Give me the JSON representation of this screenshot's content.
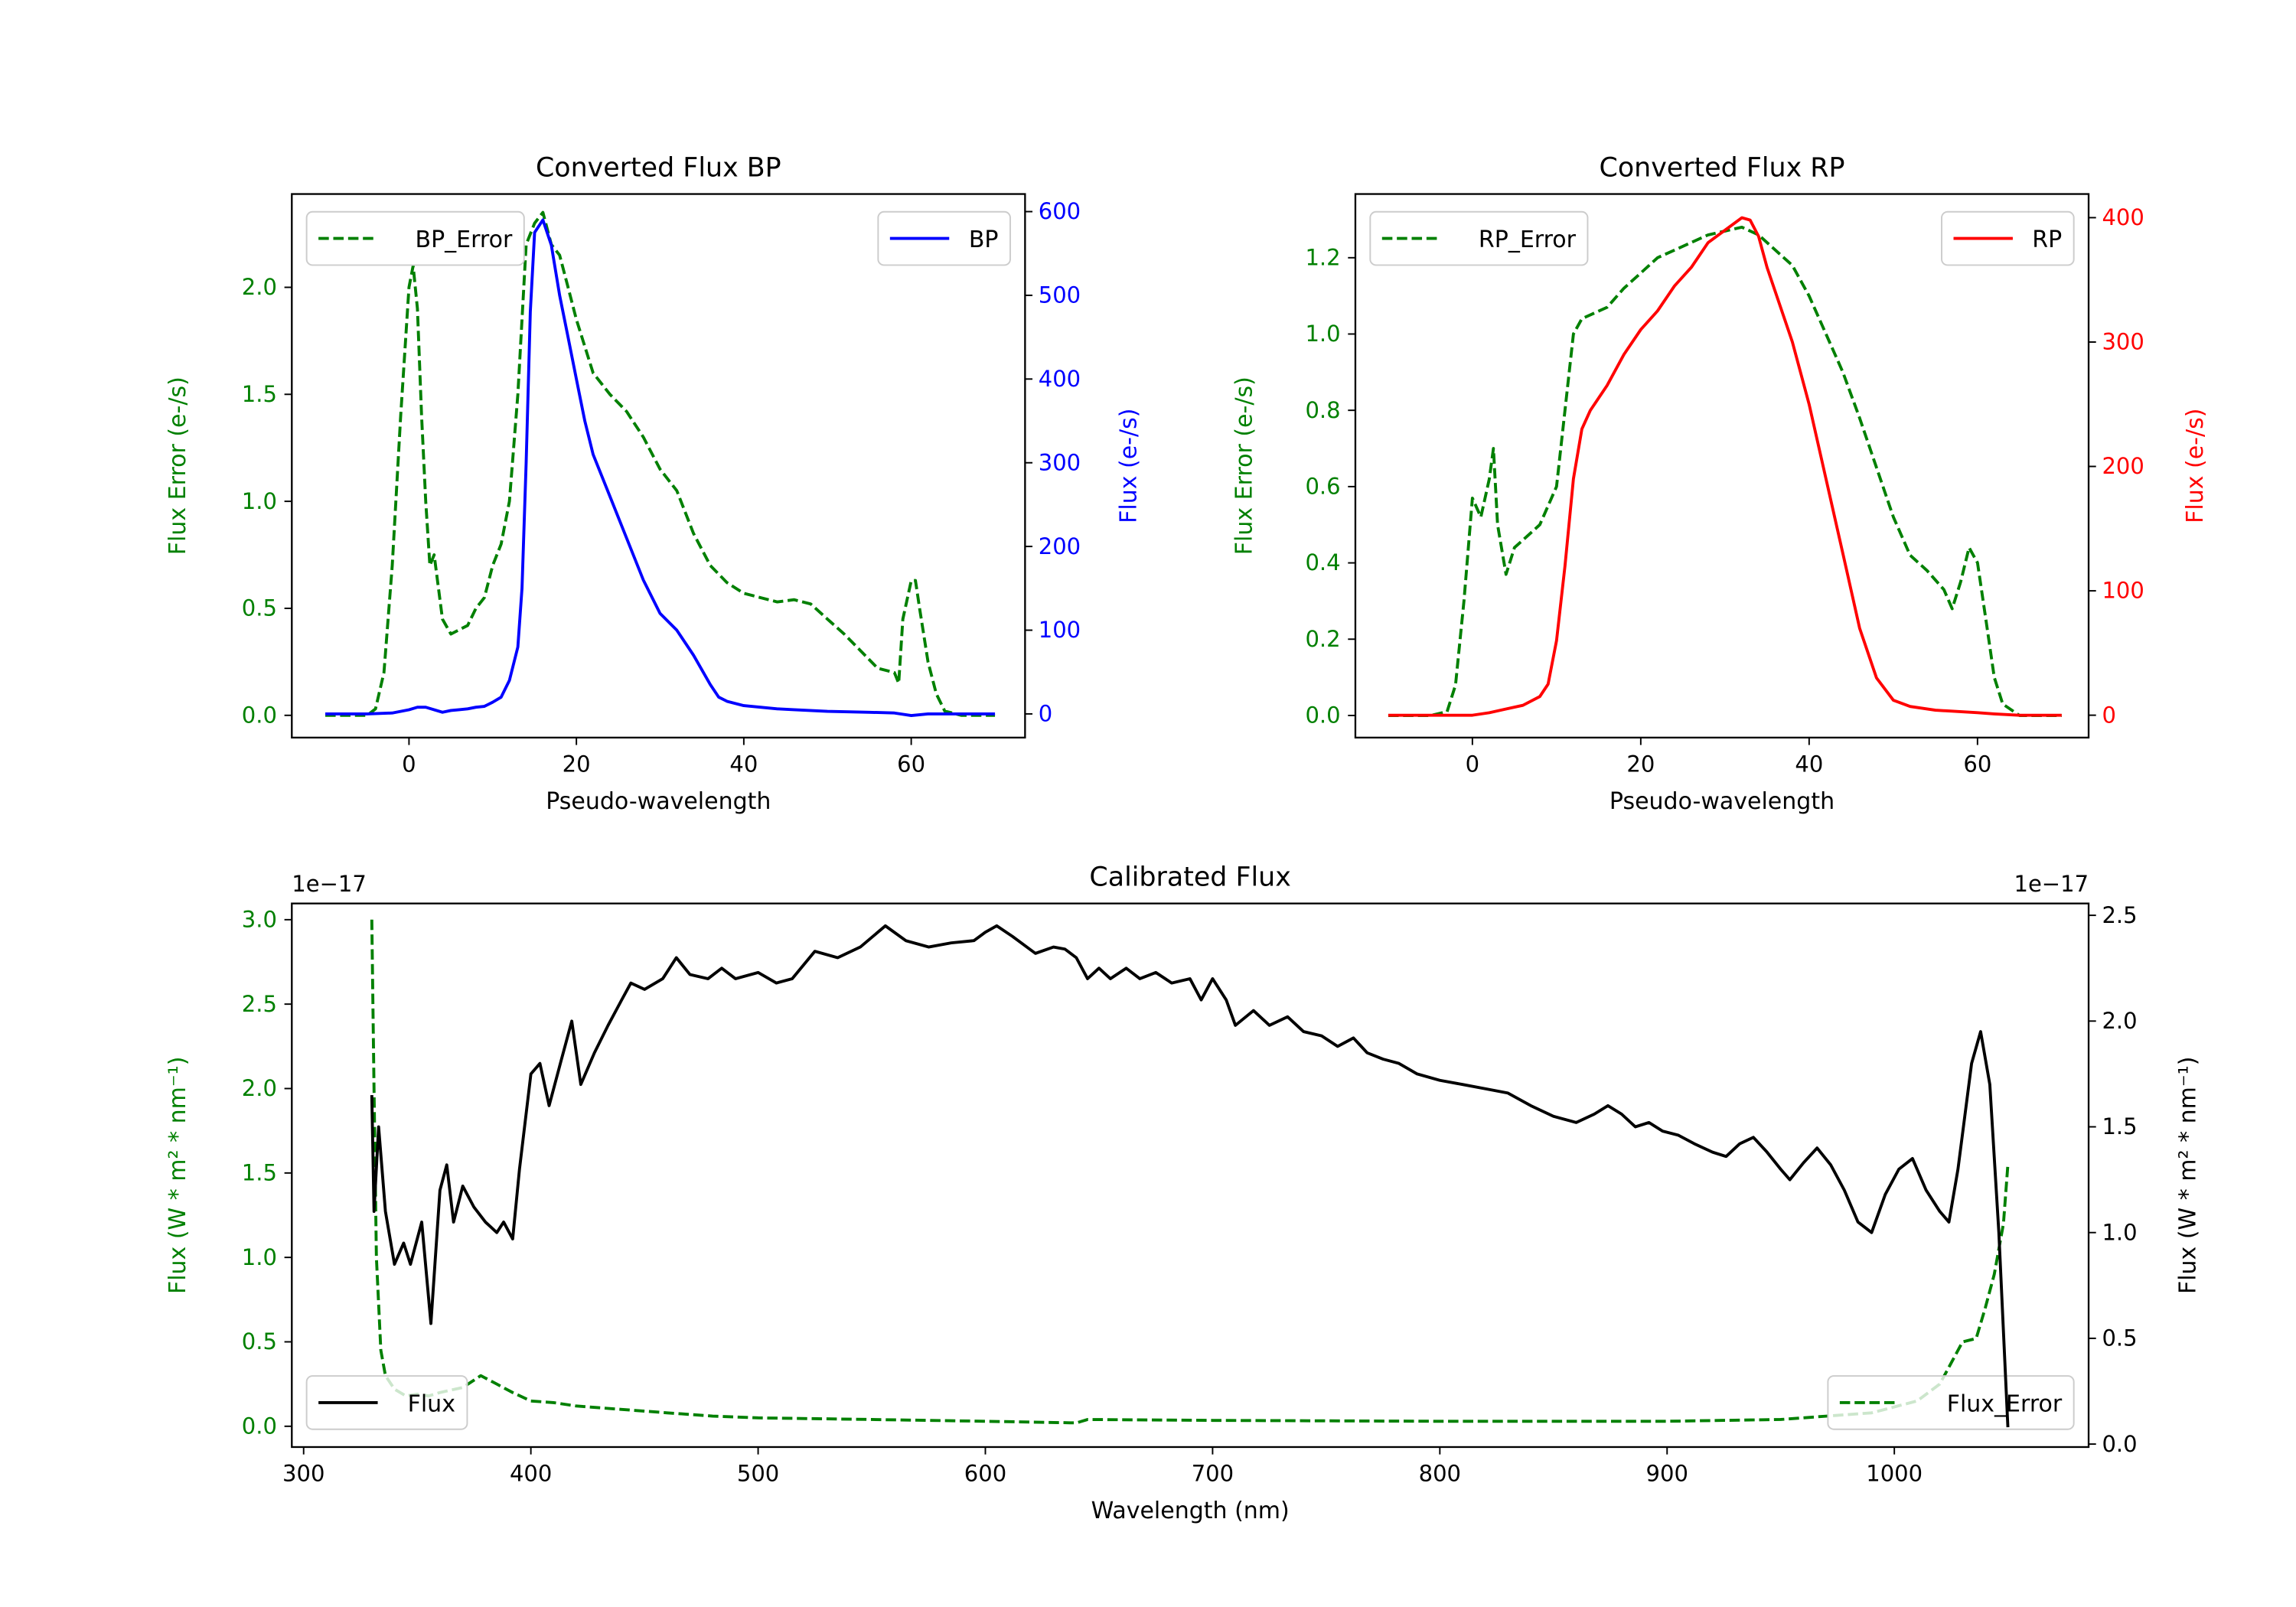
{
  "chart_data": [
    {
      "id": "bp",
      "type": "line",
      "title": "Converted Flux BP",
      "xlabel": "Pseudo-wavelength",
      "ylabel_left": "Flux Error (e-/s)",
      "ylabel_right": "Flux (e-/s)",
      "left_color": "#008000",
      "right_color": "#0000ff",
      "xlim": [
        -14,
        73.6
      ],
      "ylim_left": [
        -0.104,
        2.436
      ],
      "ylim_right": [
        -28.3,
        621
      ],
      "xticks": [
        0,
        20,
        40,
        60
      ],
      "xtick_labels": [
        "0",
        "20",
        "40",
        "60"
      ],
      "yticks_left": [
        0,
        0.5,
        1,
        1.5,
        2
      ],
      "ytick_labels_left": [
        "0.0",
        "0.5",
        "1.0",
        "1.5",
        "2.0"
      ],
      "yticks_right": [
        0,
        100,
        200,
        300,
        400,
        500,
        600
      ],
      "ytick_labels_right": [
        "0",
        "100",
        "200",
        "300",
        "400",
        "500",
        "600"
      ],
      "series": [
        {
          "name": "BP_Error",
          "axis": "left",
          "color": "#008000",
          "dashed": true,
          "legend": "upper-left",
          "x": [
            -10,
            -5,
            -4,
            -3,
            -2,
            -1,
            0,
            0.5,
            1,
            1.5,
            2,
            2.5,
            3,
            4,
            5,
            6,
            7,
            8,
            9,
            10,
            11,
            12,
            13,
            14,
            15,
            16,
            17,
            18,
            19,
            20,
            22,
            24,
            26,
            28,
            30,
            32,
            34,
            36,
            38,
            40,
            42,
            44,
            46,
            48,
            50,
            52,
            54,
            56,
            58,
            58.5,
            59,
            60,
            60.5,
            61,
            62,
            63,
            64,
            66,
            70
          ],
          "y": [
            0,
            0,
            0.03,
            0.2,
            0.7,
            1.4,
            2.0,
            2.1,
            1.9,
            1.4,
            1.0,
            0.7,
            0.75,
            0.45,
            0.38,
            0.4,
            0.42,
            0.5,
            0.55,
            0.7,
            0.8,
            1.0,
            1.5,
            2.2,
            2.3,
            2.35,
            2.2,
            2.15,
            2.0,
            1.85,
            1.6,
            1.5,
            1.42,
            1.3,
            1.15,
            1.05,
            0.85,
            0.7,
            0.62,
            0.57,
            0.55,
            0.53,
            0.54,
            0.52,
            0.45,
            0.38,
            0.3,
            0.22,
            0.2,
            0.15,
            0.45,
            0.63,
            0.63,
            0.5,
            0.25,
            0.1,
            0.02,
            0,
            0
          ]
        },
        {
          "name": "BP",
          "axis": "right",
          "color": "#0000ff",
          "dashed": false,
          "legend": "upper-right",
          "x": [
            -10,
            -5,
            -2,
            0,
            1,
            2,
            3,
            4,
            5,
            6,
            7,
            8,
            9,
            10,
            11,
            12,
            13,
            13.5,
            14,
            14.5,
            15,
            16,
            17,
            18,
            19,
            20,
            21,
            22,
            24,
            26,
            28,
            30,
            32,
            34,
            36,
            37,
            38,
            40,
            42,
            44,
            46,
            50,
            55,
            58,
            60,
            62,
            65,
            70
          ],
          "y": [
            0,
            0,
            1,
            5,
            8,
            8,
            5,
            2,
            4,
            5,
            6,
            8,
            9,
            14,
            20,
            40,
            80,
            150,
            300,
            480,
            575,
            590,
            560,
            500,
            450,
            400,
            350,
            310,
            260,
            210,
            160,
            120,
            100,
            70,
            35,
            20,
            15,
            10,
            8,
            6,
            5,
            3,
            2,
            1,
            -2,
            0,
            0,
            0
          ]
        }
      ]
    },
    {
      "id": "rp",
      "type": "line",
      "title": "Converted Flux RP",
      "xlabel": "Pseudo-wavelength",
      "ylabel_left": "Flux Error (e-/s)",
      "ylabel_right": "Flux (e-/s)",
      "left_color": "#008000",
      "right_color": "#ff0000",
      "xlim": [
        -13.9,
        73.2
      ],
      "ylim_left": [
        -0.058,
        1.367
      ],
      "ylim_right": [
        -18,
        419
      ],
      "xticks": [
        0,
        20,
        40,
        60
      ],
      "xtick_labels": [
        "0",
        "20",
        "40",
        "60"
      ],
      "yticks_left": [
        0,
        0.2,
        0.4,
        0.6,
        0.8,
        1.0,
        1.2
      ],
      "ytick_labels_left": [
        "0.0",
        "0.2",
        "0.4",
        "0.6",
        "0.8",
        "1.0",
        "1.2"
      ],
      "yticks_right": [
        0,
        100,
        200,
        300,
        400
      ],
      "ytick_labels_right": [
        "0",
        "100",
        "200",
        "300",
        "400"
      ],
      "series": [
        {
          "name": "RP_Error",
          "axis": "left",
          "color": "#008000",
          "dashed": true,
          "legend": "upper-left",
          "x": [
            -10,
            -5,
            -3,
            -2,
            -1,
            0,
            1,
            2,
            2.5,
            3,
            4,
            5,
            6,
            8,
            10,
            11,
            12,
            13,
            14,
            16,
            18,
            20,
            22,
            24,
            26,
            28,
            30,
            32,
            34,
            36,
            38,
            40,
            42,
            44,
            46,
            48,
            50,
            52,
            54,
            56,
            57,
            58,
            59,
            60,
            61,
            62,
            63,
            65,
            70
          ],
          "y": [
            0,
            0,
            0.01,
            0.08,
            0.3,
            0.57,
            0.52,
            0.62,
            0.7,
            0.5,
            0.37,
            0.44,
            0.46,
            0.5,
            0.6,
            0.8,
            1.0,
            1.04,
            1.05,
            1.07,
            1.12,
            1.16,
            1.2,
            1.22,
            1.24,
            1.26,
            1.27,
            1.28,
            1.26,
            1.22,
            1.18,
            1.1,
            1.0,
            0.9,
            0.78,
            0.65,
            0.52,
            0.42,
            0.38,
            0.33,
            0.28,
            0.35,
            0.44,
            0.4,
            0.25,
            0.1,
            0.03,
            0,
            0
          ]
        },
        {
          "name": "RP",
          "axis": "right",
          "color": "#ff0000",
          "dashed": false,
          "legend": "upper-right",
          "x": [
            -10,
            -5,
            0,
            2,
            4,
            6,
            8,
            9,
            10,
            11,
            12,
            13,
            14,
            16,
            18,
            20,
            22,
            24,
            26,
            28,
            30,
            31,
            32,
            33,
            34,
            35,
            36,
            38,
            40,
            42,
            44,
            46,
            48,
            50,
            52,
            55,
            60,
            62,
            65,
            70
          ],
          "y": [
            0,
            0,
            0,
            2,
            5,
            8,
            15,
            25,
            60,
            120,
            190,
            230,
            245,
            265,
            290,
            310,
            325,
            345,
            360,
            380,
            390,
            395,
            400,
            398,
            385,
            360,
            340,
            300,
            250,
            190,
            130,
            70,
            30,
            12,
            7,
            4,
            2,
            1,
            0,
            0
          ]
        }
      ]
    },
    {
      "id": "cal",
      "type": "line",
      "title": "Calibrated Flux",
      "xlabel": "Wavelength (nm)",
      "ylabel_left": "Flux (W * m² * nm⁻¹)",
      "ylabel_right": "Flux (W * m² * nm⁻¹)",
      "left_color": "#008000",
      "right_color": "#000000",
      "offset_left": "1e−17",
      "offset_right": "1e−17",
      "xlim": [
        294.8,
        1085.5
      ],
      "ylim_left": [
        -0.123,
        3.096
      ],
      "ylim_right": [
        -0.014,
        2.556
      ],
      "xticks": [
        300,
        400,
        500,
        600,
        700,
        800,
        900,
        1000
      ],
      "xtick_labels": [
        "300",
        "400",
        "500",
        "600",
        "700",
        "800",
        "900",
        "1000"
      ],
      "yticks_left": [
        0,
        0.5,
        1,
        1.5,
        2,
        2.5,
        3
      ],
      "ytick_labels_left": [
        "0.0",
        "0.5",
        "1.0",
        "1.5",
        "2.0",
        "2.5",
        "3.0"
      ],
      "yticks_right": [
        0,
        0.5,
        1,
        1.5,
        2,
        2.5
      ],
      "ytick_labels_right": [
        "0.0",
        "0.5",
        "1.0",
        "1.5",
        "2.0",
        "2.5"
      ],
      "series": [
        {
          "name": "Flux_Error",
          "axis": "left",
          "color": "#008000",
          "dashed": true,
          "legend": "lower-right",
          "x": [
            330,
            331,
            332,
            334,
            336,
            340,
            345,
            350,
            355,
            360,
            370,
            378,
            385,
            392,
            400,
            410,
            420,
            440,
            460,
            480,
            500,
            550,
            600,
            640,
            645,
            700,
            800,
            900,
            950,
            990,
            1010,
            1020,
            1030,
            1036,
            1040,
            1044,
            1048,
            1050
          ],
          "y": [
            3.0,
            2.0,
            1.0,
            0.45,
            0.3,
            0.22,
            0.18,
            0.19,
            0.18,
            0.2,
            0.23,
            0.3,
            0.25,
            0.2,
            0.15,
            0.14,
            0.12,
            0.1,
            0.08,
            0.06,
            0.05,
            0.04,
            0.03,
            0.02,
            0.04,
            0.035,
            0.03,
            0.03,
            0.04,
            0.08,
            0.15,
            0.25,
            0.5,
            0.52,
            0.7,
            0.9,
            1.2,
            1.55
          ]
        },
        {
          "name": "Flux",
          "axis": "right",
          "color": "#000000",
          "dashed": false,
          "legend": "lower-left",
          "x": [
            330,
            331,
            333,
            336,
            340,
            344,
            347,
            352,
            356,
            360,
            363,
            366,
            370,
            375,
            380,
            385,
            388,
            392,
            395,
            400,
            404,
            408,
            413,
            418,
            422,
            428,
            434,
            440,
            444,
            450,
            458,
            464,
            470,
            478,
            484,
            490,
            500,
            508,
            515,
            525,
            535,
            545,
            556,
            565,
            575,
            585,
            595,
            600,
            605,
            612,
            622,
            630,
            635,
            640,
            645,
            650,
            655,
            662,
            668,
            675,
            682,
            690,
            695,
            700,
            706,
            710,
            718,
            725,
            733,
            740,
            748,
            755,
            762,
            768,
            775,
            782,
            790,
            800,
            810,
            820,
            830,
            840,
            850,
            860,
            868,
            874,
            880,
            886,
            892,
            898,
            905,
            912,
            920,
            926,
            932,
            938,
            944,
            950,
            954,
            960,
            966,
            972,
            978,
            984,
            990,
            996,
            1002,
            1008,
            1014,
            1020,
            1024,
            1028,
            1034,
            1038,
            1042,
            1046,
            1050
          ],
          "y": [
            1.65,
            1.1,
            1.5,
            1.1,
            0.85,
            0.95,
            0.85,
            1.05,
            0.57,
            1.2,
            1.32,
            1.05,
            1.22,
            1.12,
            1.05,
            1.0,
            1.05,
            0.97,
            1.3,
            1.75,
            1.8,
            1.6,
            1.8,
            2.0,
            1.7,
            1.85,
            1.98,
            2.1,
            2.18,
            2.15,
            2.2,
            2.3,
            2.22,
            2.2,
            2.25,
            2.2,
            2.23,
            2.18,
            2.2,
            2.33,
            2.3,
            2.35,
            2.45,
            2.38,
            2.35,
            2.37,
            2.38,
            2.42,
            2.45,
            2.4,
            2.32,
            2.35,
            2.34,
            2.3,
            2.2,
            2.25,
            2.2,
            2.25,
            2.2,
            2.23,
            2.18,
            2.2,
            2.1,
            2.2,
            2.1,
            1.98,
            2.05,
            1.98,
            2.02,
            1.95,
            1.93,
            1.88,
            1.92,
            1.85,
            1.82,
            1.8,
            1.75,
            1.72,
            1.7,
            1.68,
            1.66,
            1.6,
            1.55,
            1.52,
            1.56,
            1.6,
            1.56,
            1.5,
            1.52,
            1.48,
            1.46,
            1.42,
            1.38,
            1.36,
            1.42,
            1.45,
            1.38,
            1.3,
            1.25,
            1.33,
            1.4,
            1.32,
            1.2,
            1.05,
            1.0,
            1.18,
            1.3,
            1.35,
            1.2,
            1.1,
            1.05,
            1.3,
            1.8,
            1.95,
            1.7,
            1.0,
            0.08
          ]
        }
      ]
    }
  ]
}
